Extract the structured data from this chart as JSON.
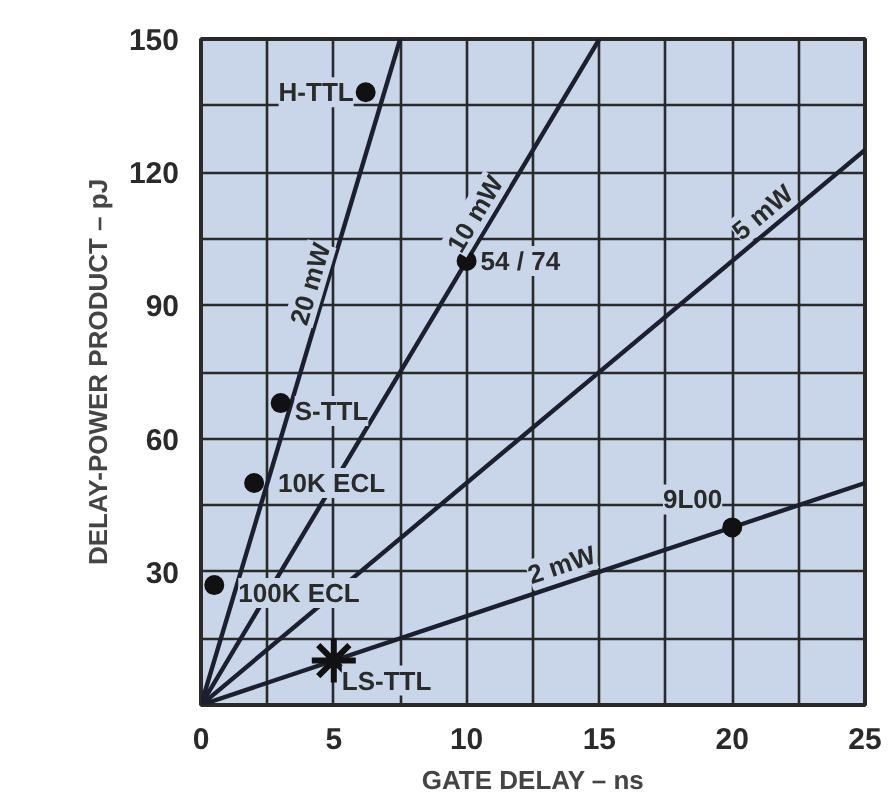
{
  "chart_data": {
    "type": "line",
    "xlabel": "GATE DELAY – ns",
    "ylabel": "DELAY-POWER PRODUCT – pJ",
    "xlim": [
      0,
      25
    ],
    "ylim": [
      0,
      150
    ],
    "xticks": [
      0,
      {
        "value": 2.5,
        "label": null
      },
      5,
      {
        "value": 7.5,
        "label": null
      },
      10,
      {
        "value": 12.5,
        "label": null
      },
      15,
      {
        "value": 17.5,
        "label": null
      },
      20,
      {
        "value": 22.5,
        "label": null
      },
      25
    ],
    "yticks": [
      {
        "value": 0,
        "label": null
      },
      {
        "value": 15,
        "label": null
      },
      30,
      {
        "value": 45,
        "label": null
      },
      60,
      {
        "value": 75,
        "label": null
      },
      90,
      {
        "value": 105,
        "label": null
      },
      120,
      {
        "value": 135,
        "label": null
      },
      150
    ],
    "grid": true,
    "series": [
      {
        "name": "20 mW",
        "color": "#1c1f2e",
        "x": [
          0,
          7.5
        ],
        "values": [
          0,
          150
        ]
      },
      {
        "name": "10 mW",
        "color": "#1c1f2e",
        "x": [
          0,
          15
        ],
        "values": [
          0,
          150
        ]
      },
      {
        "name": "5 mW",
        "color": "#1c1f2e",
        "x": [
          0,
          25
        ],
        "values": [
          0,
          125
        ]
      },
      {
        "name": "2 mW",
        "color": "#1c1f2e",
        "x": [
          0,
          25
        ],
        "values": [
          0,
          50
        ]
      },
      {
        "type": "scatter",
        "marker": "circle",
        "color": "#111111",
        "x": [
          6.2,
          10,
          3,
          2,
          0.5,
          20
        ],
        "values": [
          138,
          100,
          68,
          50,
          27,
          40
        ]
      },
      {
        "type": "scatter",
        "marker": "cross",
        "color": "#111111",
        "x": [
          5
        ],
        "values": [
          10
        ]
      }
    ],
    "annotations": [
      {
        "text": "H-TTL",
        "x": 6.2,
        "y": 138
      },
      {
        "text": "54 / 74",
        "x": 10,
        "y": 100
      },
      {
        "text": "S-TTL",
        "x": 3,
        "y": 68
      },
      {
        "text": "10K ECL",
        "x": 2,
        "y": 50
      },
      {
        "text": "100K ECL",
        "x": 0.5,
        "y": 27
      },
      {
        "text": "9L00",
        "x": 20,
        "y": 40
      },
      {
        "text": "LS-TTL",
        "x": 5,
        "y": 10
      }
    ]
  }
}
